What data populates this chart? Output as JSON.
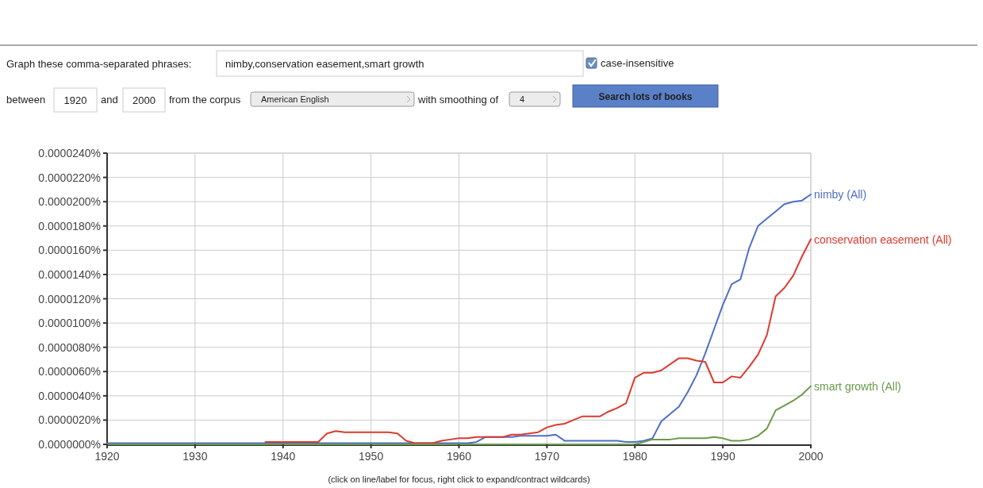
{
  "chart_data": [
    {
      "type": "other",
      "annotations": [
        "Graph these comma-separated phrases:",
        "nimby,conservation easement,smart growth",
        "case-insensitive",
        "between",
        "1920",
        "and",
        "2000",
        "from the corpus",
        "American English",
        "with smoothing of",
        "4",
        "Search lots of books"
      ]
    },
    {
      "type": "line",
      "annotations": [
        "(click on line/label for focus, right click to expand/contract wildcards)"
      ],
      "x": [
        1920,
        1921,
        1922,
        1923,
        1924,
        1925,
        1926,
        1927,
        1928,
        1929,
        1930,
        1931,
        1932,
        1933,
        1934,
        1935,
        1936,
        1937,
        1938,
        1939,
        1940,
        1941,
        1942,
        1943,
        1944,
        1945,
        1946,
        1947,
        1948,
        1949,
        1950,
        1951,
        1952,
        1953,
        1954,
        1955,
        1956,
        1957,
        1958,
        1959,
        1960,
        1961,
        1962,
        1963,
        1964,
        1965,
        1966,
        1967,
        1968,
        1969,
        1970,
        1971,
        1972,
        1973,
        1974,
        1975,
        1976,
        1977,
        1978,
        1979,
        1980,
        1981,
        1982,
        1983,
        1984,
        1985,
        1986,
        1987,
        1988,
        1989,
        1990,
        1991,
        1992,
        1993,
        1994,
        1995,
        1996,
        1997,
        1998,
        1999,
        2000
      ],
      "xlim": [
        1920,
        2000
      ],
      "xticks": [
        1920,
        1930,
        1940,
        1950,
        1960,
        1970,
        1980,
        1990,
        2000
      ],
      "ylim": [
        0,
        2.4e-05
      ],
      "yticks": [
        {
          "value": 0,
          "label": "0.0000000%"
        },
        {
          "value": 2e-06,
          "label": "0.0000020%"
        },
        {
          "value": 4e-06,
          "label": "0.0000040%"
        },
        {
          "value": 6e-06,
          "label": "0.0000060%"
        },
        {
          "value": 8e-06,
          "label": "0.0000080%"
        },
        {
          "value": 1e-05,
          "label": "0.0000100%"
        },
        {
          "value": 1.2e-05,
          "label": "0.0000120%"
        },
        {
          "value": 1.4e-05,
          "label": "0.0000140%"
        },
        {
          "value": 1.6e-05,
          "label": "0.0000160%"
        },
        {
          "value": 1.8e-05,
          "label": "0.0000180%"
        },
        {
          "value": 2e-05,
          "label": "0.0000200%"
        },
        {
          "value": 2.2e-05,
          "label": "0.0000220%"
        },
        {
          "value": 2.4e-05,
          "label": "0.0000240%"
        }
      ],
      "grid": true,
      "line_style": "solid",
      "series": [
        {
          "name": "nimby (All)",
          "color": "#4e6fc8",
          "values": [
            1e-07,
            1e-07,
            1e-07,
            1e-07,
            1e-07,
            1e-07,
            1e-07,
            1e-07,
            1e-07,
            1e-07,
            1e-07,
            1e-07,
            1e-07,
            1e-07,
            1e-07,
            1e-07,
            1e-07,
            1e-07,
            1e-07,
            1e-07,
            1e-07,
            1e-07,
            1e-07,
            1e-07,
            1e-07,
            1e-07,
            1e-07,
            1e-07,
            1e-07,
            1e-07,
            1e-07,
            1e-07,
            1e-07,
            1e-07,
            1e-07,
            1e-07,
            1e-07,
            1e-07,
            1e-07,
            1e-07,
            1e-07,
            1e-07,
            2e-07,
            6e-07,
            6e-07,
            6e-07,
            6e-07,
            7e-07,
            7e-07,
            7e-07,
            7e-07,
            8e-07,
            3e-07,
            3e-07,
            3e-07,
            3e-07,
            3e-07,
            3e-07,
            3e-07,
            2e-07,
            2e-07,
            3e-07,
            5e-07,
            1.9e-06,
            2.5e-06,
            3.1e-06,
            4.3e-06,
            5.7e-06,
            7.5e-06,
            9.5e-06,
            1.15e-05,
            1.32e-05,
            1.36e-05,
            1.62e-05,
            1.8e-05,
            1.86e-05,
            1.92e-05,
            1.98e-05,
            2e-05,
            2.01e-05,
            2.06e-05
          ]
        },
        {
          "name": "conservation easement (All)",
          "color": "#dc3a2f",
          "values": [
            null,
            null,
            null,
            null,
            null,
            null,
            null,
            null,
            null,
            null,
            null,
            null,
            null,
            null,
            null,
            null,
            null,
            null,
            2e-07,
            2e-07,
            2e-07,
            2e-07,
            2e-07,
            2e-07,
            2e-07,
            9e-07,
            1.1e-06,
            1e-06,
            1e-06,
            1e-06,
            1e-06,
            1e-06,
            1e-06,
            9e-07,
            3e-07,
            1e-07,
            1e-07,
            1e-07,
            3e-07,
            4e-07,
            5e-07,
            5e-07,
            6e-07,
            6e-07,
            6e-07,
            6e-07,
            8e-07,
            8e-07,
            9e-07,
            1e-06,
            1.4e-06,
            1.6e-06,
            1.7e-06,
            2e-06,
            2.3e-06,
            2.3e-06,
            2.3e-06,
            2.7e-06,
            3e-06,
            3.4e-06,
            5.5e-06,
            5.9e-06,
            5.9e-06,
            6.1e-06,
            6.6e-06,
            7.1e-06,
            7.1e-06,
            6.9e-06,
            6.8e-06,
            5.1e-06,
            5.1e-06,
            5.6e-06,
            5.5e-06,
            6.4e-06,
            7.4e-06,
            9e-06,
            1.22e-05,
            1.29e-05,
            1.39e-05,
            1.55e-05,
            1.69e-05
          ]
        },
        {
          "name": "smart growth (All)",
          "color": "#6a9a4b",
          "values": [
            0,
            0,
            0,
            0,
            0,
            0,
            0,
            0,
            0,
            0,
            0,
            0,
            0,
            0,
            0,
            0,
            0,
            0,
            0,
            0,
            0,
            0,
            0,
            0,
            0,
            0,
            0,
            0,
            0,
            0,
            0,
            0,
            0,
            0,
            0,
            0,
            0,
            0,
            0,
            0,
            0,
            0,
            0,
            0,
            0,
            0,
            0,
            0,
            0,
            0,
            0,
            0,
            0,
            0,
            0,
            0,
            0,
            0,
            0,
            0,
            0,
            2e-07,
            4e-07,
            4e-07,
            4e-07,
            5e-07,
            5e-07,
            5e-07,
            5e-07,
            6e-07,
            5e-07,
            3e-07,
            3e-07,
            4e-07,
            7e-07,
            1.3e-06,
            2.8e-06,
            3.2e-06,
            3.6e-06,
            4.1e-06,
            4.8e-06
          ]
        }
      ]
    }
  ]
}
